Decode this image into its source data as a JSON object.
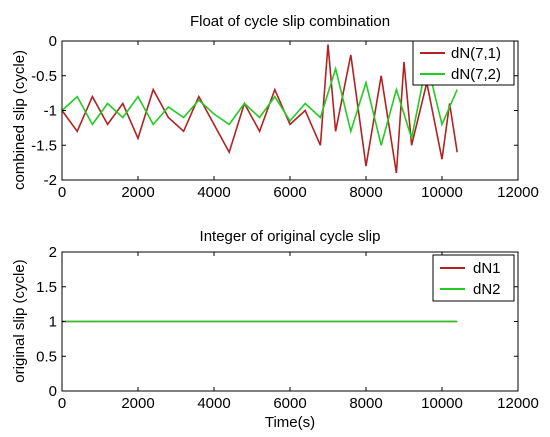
{
  "chart_data": [
    {
      "type": "line",
      "title": "Float of cycle slip combination",
      "xlabel": "",
      "ylabel": "combined slip (cycle)",
      "xlim": [
        0,
        12000
      ],
      "ylim": [
        -2,
        0
      ],
      "xticks": [
        0,
        2000,
        4000,
        6000,
        8000,
        10000,
        12000
      ],
      "yticks": [
        0,
        -0.5,
        -1,
        -1.5,
        -2
      ],
      "xtick_labels": [
        "0",
        "2000",
        "4000",
        "6000",
        "8000",
        "10000",
        "12000"
      ],
      "ytick_labels": [
        "0",
        "-0.5",
        "-1",
        "-1.5",
        "-2"
      ],
      "legend_position": "top-right",
      "series": [
        {
          "name": "dN(7,1)",
          "color": "#b22222",
          "x": [
            0,
            400,
            800,
            1200,
            1600,
            2000,
            2400,
            2800,
            3200,
            3600,
            4000,
            4400,
            4800,
            5200,
            5600,
            6000,
            6400,
            6800,
            7000,
            7200,
            7600,
            8000,
            8400,
            8800,
            9000,
            9200,
            9600,
            10000,
            10200,
            10400
          ],
          "y": [
            -1.0,
            -1.3,
            -0.8,
            -1.2,
            -0.9,
            -1.4,
            -0.7,
            -1.1,
            -1.3,
            -0.8,
            -1.2,
            -1.6,
            -0.9,
            -1.3,
            -0.7,
            -1.2,
            -1.0,
            -1.5,
            -0.05,
            -1.3,
            -0.2,
            -1.8,
            -0.5,
            -1.9,
            -0.3,
            -1.5,
            -0.6,
            -1.7,
            -0.9,
            -1.6
          ]
        },
        {
          "name": "dN(7,2)",
          "color": "#22cc22",
          "x": [
            0,
            400,
            800,
            1200,
            1600,
            2000,
            2400,
            2800,
            3200,
            3600,
            4000,
            4400,
            4800,
            5200,
            5600,
            6000,
            6400,
            6800,
            7200,
            7600,
            8000,
            8400,
            8800,
            9200,
            9600,
            10000,
            10400
          ],
          "y": [
            -1.0,
            -0.8,
            -1.2,
            -0.9,
            -1.1,
            -0.8,
            -1.2,
            -0.95,
            -1.1,
            -0.85,
            -1.05,
            -1.2,
            -0.9,
            -1.1,
            -0.8,
            -1.15,
            -0.9,
            -1.1,
            -0.4,
            -1.3,
            -0.6,
            -1.5,
            -0.7,
            -1.4,
            -0.3,
            -1.2,
            -0.7
          ]
        }
      ]
    },
    {
      "type": "line",
      "title": "Integer of original cycle slip",
      "xlabel": "Time(s)",
      "ylabel": "original slip (cycle)",
      "xlim": [
        0,
        12000
      ],
      "ylim": [
        0,
        2
      ],
      "xticks": [
        0,
        2000,
        4000,
        6000,
        8000,
        10000,
        12000
      ],
      "yticks": [
        2,
        1.5,
        1,
        0.5,
        0
      ],
      "xtick_labels": [
        "0",
        "2000",
        "4000",
        "6000",
        "8000",
        "10000",
        "12000"
      ],
      "ytick_labels": [
        "2",
        "1.5",
        "1",
        "0.5",
        "0"
      ],
      "legend_position": "top-right",
      "series": [
        {
          "name": "dN1",
          "color": "#b22222",
          "x": [
            0,
            10400
          ],
          "y": [
            1,
            1
          ]
        },
        {
          "name": "dN2",
          "color": "#22cc22",
          "x": [
            0,
            10400
          ],
          "y": [
            1,
            1
          ]
        }
      ]
    }
  ]
}
